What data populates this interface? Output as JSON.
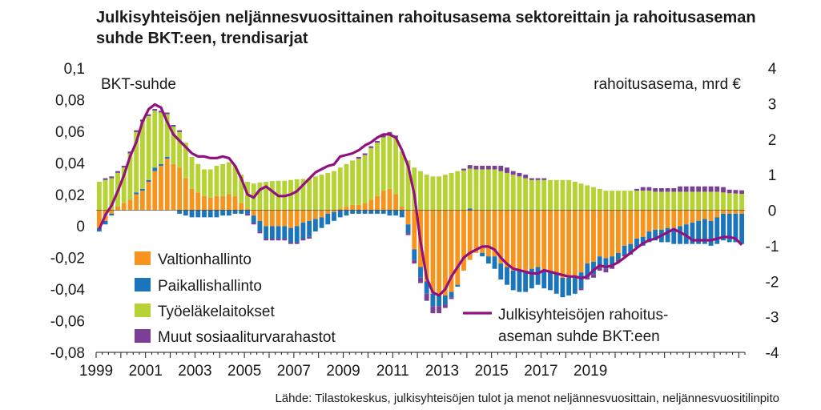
{
  "title": "Julkisyhteisöjen neljännesvuosittainen rahoitusasema sektoreittain ja rahoitusaseman suhde BKT:een, trendisarjat",
  "source": "Lähde: Tilastokeskus, julkisyhteisöjen tulot ja menot neljännesvuosittain, neljännesvuositilinpito",
  "colors": {
    "valtionhallinto": "#f7941d",
    "paikallishallinto": "#1b75bb",
    "tyoelake": "#b5d334",
    "muut": "#7b3f98",
    "ratio_line": "#93117e"
  },
  "chart_data": {
    "type": "bar",
    "subtype": "stacked bar with line on secondary axis",
    "left_axis_label": "BKT-suhde",
    "right_axis_label": "rahoitusasema, mrd €",
    "left_ylim": [
      -0.08,
      0.1
    ],
    "right_ylim": [
      -4,
      4
    ],
    "left_ticks": [
      "0,1",
      "0,08",
      "0,06",
      "0,04",
      "0,02",
      "0",
      "-0,02",
      "-0,04",
      "-0,06",
      "-0,08"
    ],
    "right_ticks": [
      "4",
      "3",
      "2",
      "1",
      "0",
      "-1",
      "-2",
      "-3",
      "-4"
    ],
    "x_ticks": [
      "1999",
      "2001",
      "2003",
      "2005",
      "2007",
      "2009",
      "2011",
      "2013",
      "2015",
      "2017",
      "2019"
    ],
    "grid": false,
    "legend_position": "bottom-left",
    "quarters_start": "1999Q1",
    "legend": [
      "Valtionhallinto",
      "Paikallishallinto",
      "Työeläkelaitokset",
      "Muut sosiaaliturvarahastot"
    ],
    "line_label": "Julkisyhteisöjen rahoitus-aseman suhde BKT:een",
    "series": [
      {
        "name": "Valtionhallinto",
        "unit": "mrd €",
        "values": [
          -0.5,
          -0.3,
          -0.1,
          0.1,
          0.2,
          0.3,
          0.45,
          0.55,
          0.8,
          1.1,
          1.25,
          1.45,
          1.3,
          1.2,
          0.9,
          0.6,
          0.5,
          0.4,
          0.35,
          0.4,
          0.4,
          0.45,
          0.4,
          0.2,
          0.05,
          -0.15,
          -0.3,
          -0.45,
          -0.45,
          -0.45,
          -0.45,
          -0.5,
          -0.45,
          -0.35,
          -0.3,
          -0.25,
          -0.2,
          -0.1,
          -0.05,
          0.05,
          0.1,
          0.15,
          0.15,
          0.2,
          0.3,
          0.4,
          0.55,
          0.6,
          0.45,
          0.1,
          -0.4,
          -1.1,
          -1.6,
          -2.0,
          -2.35,
          -2.4,
          -2.4,
          -2.3,
          -2.1,
          -1.7,
          -1.4,
          -1.2,
          -1.2,
          -1.3,
          -1.3,
          -1.5,
          -1.6,
          -1.7,
          -1.7,
          -1.7,
          -1.65,
          -1.6,
          -1.7,
          -1.7,
          -1.8,
          -1.9,
          -1.9,
          -1.9,
          -1.75,
          -1.5,
          -1.45,
          -1.3,
          -1.35,
          -1.3,
          -1.2,
          -1.0,
          -0.95,
          -0.8,
          -0.75,
          -0.6,
          -0.55,
          -0.55,
          -0.5,
          -0.5,
          -0.45,
          -0.4,
          -0.35,
          -0.3,
          -0.25,
          -0.3,
          -0.2,
          -0.1,
          -0.1,
          -0.1,
          -0.1
        ]
      },
      {
        "name": "Paikallishallinto",
        "unit": "mrd €",
        "values": [
          -0.1,
          -0.1,
          -0.05,
          0.0,
          0.0,
          0.0,
          0.05,
          0.05,
          0.05,
          0.1,
          0.05,
          0.05,
          0.0,
          -0.1,
          -0.15,
          -0.2,
          -0.2,
          -0.2,
          -0.2,
          -0.2,
          -0.15,
          -0.15,
          -0.1,
          -0.1,
          -0.1,
          -0.2,
          -0.3,
          -0.35,
          -0.35,
          -0.35,
          -0.35,
          -0.4,
          -0.45,
          -0.45,
          -0.45,
          -0.35,
          -0.3,
          -0.3,
          -0.25,
          -0.2,
          -0.15,
          -0.1,
          -0.1,
          -0.1,
          -0.1,
          -0.1,
          -0.1,
          -0.15,
          -0.15,
          -0.2,
          -0.25,
          -0.3,
          -0.3,
          -0.35,
          -0.35,
          -0.3,
          -0.25,
          -0.15,
          -0.05,
          0.0,
          0.05,
          0.0,
          -0.1,
          -0.2,
          -0.35,
          -0.45,
          -0.5,
          -0.55,
          -0.6,
          -0.6,
          -0.55,
          -0.5,
          -0.5,
          -0.55,
          -0.55,
          -0.55,
          -0.5,
          -0.45,
          -0.45,
          -0.4,
          -0.35,
          -0.3,
          -0.3,
          -0.25,
          -0.2,
          -0.25,
          -0.25,
          -0.25,
          -0.25,
          -0.3,
          -0.3,
          -0.35,
          -0.4,
          -0.45,
          -0.5,
          -0.55,
          -0.6,
          -0.65,
          -0.7,
          -0.7,
          -0.75,
          -0.75,
          -0.8,
          -0.8,
          -0.85
        ]
      },
      {
        "name": "Työeläkelaitokset",
        "unit": "mrd €",
        "values": [
          0.8,
          0.85,
          0.9,
          0.95,
          1.0,
          1.3,
          1.7,
          1.9,
          1.8,
          1.6,
          1.45,
          1.2,
          1.05,
          1.0,
          1.0,
          0.9,
          0.8,
          0.75,
          0.8,
          0.85,
          0.9,
          0.9,
          0.85,
          0.8,
          0.75,
          0.75,
          0.78,
          0.8,
          0.82,
          0.83,
          0.83,
          0.85,
          0.87,
          0.88,
          0.9,
          0.95,
          1.0,
          1.05,
          1.1,
          1.15,
          1.2,
          1.25,
          1.3,
          1.35,
          1.45,
          1.5,
          1.5,
          1.55,
          1.6,
          1.55,
          1.4,
          1.2,
          1.1,
          1.0,
          0.95,
          0.95,
          1.0,
          1.05,
          1.1,
          1.12,
          1.12,
          1.15,
          1.15,
          1.15,
          1.15,
          1.1,
          1.05,
          1.0,
          0.95,
          0.9,
          0.85,
          0.85,
          0.85,
          0.85,
          0.85,
          0.85,
          0.85,
          0.8,
          0.75,
          0.7,
          0.65,
          0.6,
          0.55,
          0.55,
          0.55,
          0.55,
          0.55,
          0.55,
          0.55,
          0.55,
          0.52,
          0.52,
          0.52,
          0.52,
          0.52,
          0.52,
          0.52,
          0.52,
          0.52,
          0.52,
          0.52,
          0.5,
          0.48,
          0.47,
          0.46
        ]
      },
      {
        "name": "Muut sosiaaliturvarahastot",
        "unit": "mrd €",
        "values": [
          0.0,
          0.05,
          0.05,
          0.05,
          0.05,
          0.05,
          0.05,
          0.05,
          0.05,
          0.05,
          0.05,
          0.05,
          0.05,
          0.05,
          0.0,
          0.0,
          0.0,
          0.0,
          0.0,
          0.0,
          0.0,
          0.0,
          0.0,
          0.0,
          -0.05,
          -0.05,
          -0.05,
          -0.05,
          -0.05,
          -0.05,
          -0.05,
          -0.05,
          -0.05,
          -0.05,
          -0.05,
          0.0,
          0.0,
          0.0,
          0.0,
          0.0,
          0.0,
          0.0,
          0.05,
          0.05,
          0.05,
          0.05,
          0.05,
          0.05,
          0.05,
          0.0,
          -0.05,
          -0.1,
          -0.15,
          -0.2,
          -0.2,
          -0.2,
          -0.1,
          -0.05,
          0.0,
          0.05,
          0.1,
          0.1,
          0.1,
          0.1,
          0.1,
          0.15,
          0.15,
          0.1,
          0.1,
          0.1,
          0.05,
          0.05,
          0.05,
          0.0,
          0.0,
          0.0,
          0.0,
          0.0,
          -0.05,
          -0.05,
          -0.1,
          -0.1,
          -0.1,
          -0.1,
          -0.05,
          -0.05,
          -0.05,
          0.05,
          0.1,
          0.1,
          0.1,
          0.1,
          0.1,
          0.1,
          0.15,
          0.15,
          0.15,
          0.15,
          0.15,
          0.15,
          0.15,
          0.15,
          0.1,
          0.1,
          0.1
        ]
      },
      {
        "name": "Julkisyhteisöjen rahoitusaseman suhde BKT:een",
        "unit": "BKT-suhde",
        "values": [
          -0.002,
          0.007,
          0.013,
          0.022,
          0.032,
          0.044,
          0.053,
          0.066,
          0.074,
          0.077,
          0.075,
          0.066,
          0.058,
          0.054,
          0.05,
          0.046,
          0.044,
          0.044,
          0.043,
          0.043,
          0.044,
          0.043,
          0.038,
          0.03,
          0.02,
          0.018,
          0.023,
          0.025,
          0.022,
          0.019,
          0.019,
          0.02,
          0.022,
          0.026,
          0.03,
          0.034,
          0.036,
          0.038,
          0.039,
          0.044,
          0.045,
          0.046,
          0.048,
          0.051,
          0.053,
          0.056,
          0.058,
          0.058,
          0.056,
          0.048,
          0.038,
          0.02,
          -0.01,
          -0.033,
          -0.042,
          -0.044,
          -0.04,
          -0.032,
          -0.026,
          -0.02,
          -0.017,
          -0.015,
          -0.013,
          -0.013,
          -0.015,
          -0.02,
          -0.024,
          -0.027,
          -0.028,
          -0.029,
          -0.03,
          -0.03,
          -0.028,
          -0.029,
          -0.03,
          -0.031,
          -0.032,
          -0.032,
          -0.033,
          -0.032,
          -0.028,
          -0.025,
          -0.026,
          -0.025,
          -0.023,
          -0.02,
          -0.017,
          -0.014,
          -0.011,
          -0.009,
          -0.008,
          -0.006,
          -0.004,
          -0.002,
          -0.004,
          -0.006,
          -0.009,
          -0.009,
          -0.009,
          -0.009,
          -0.008,
          -0.007,
          -0.007,
          -0.008,
          -0.012
        ]
      }
    ]
  }
}
